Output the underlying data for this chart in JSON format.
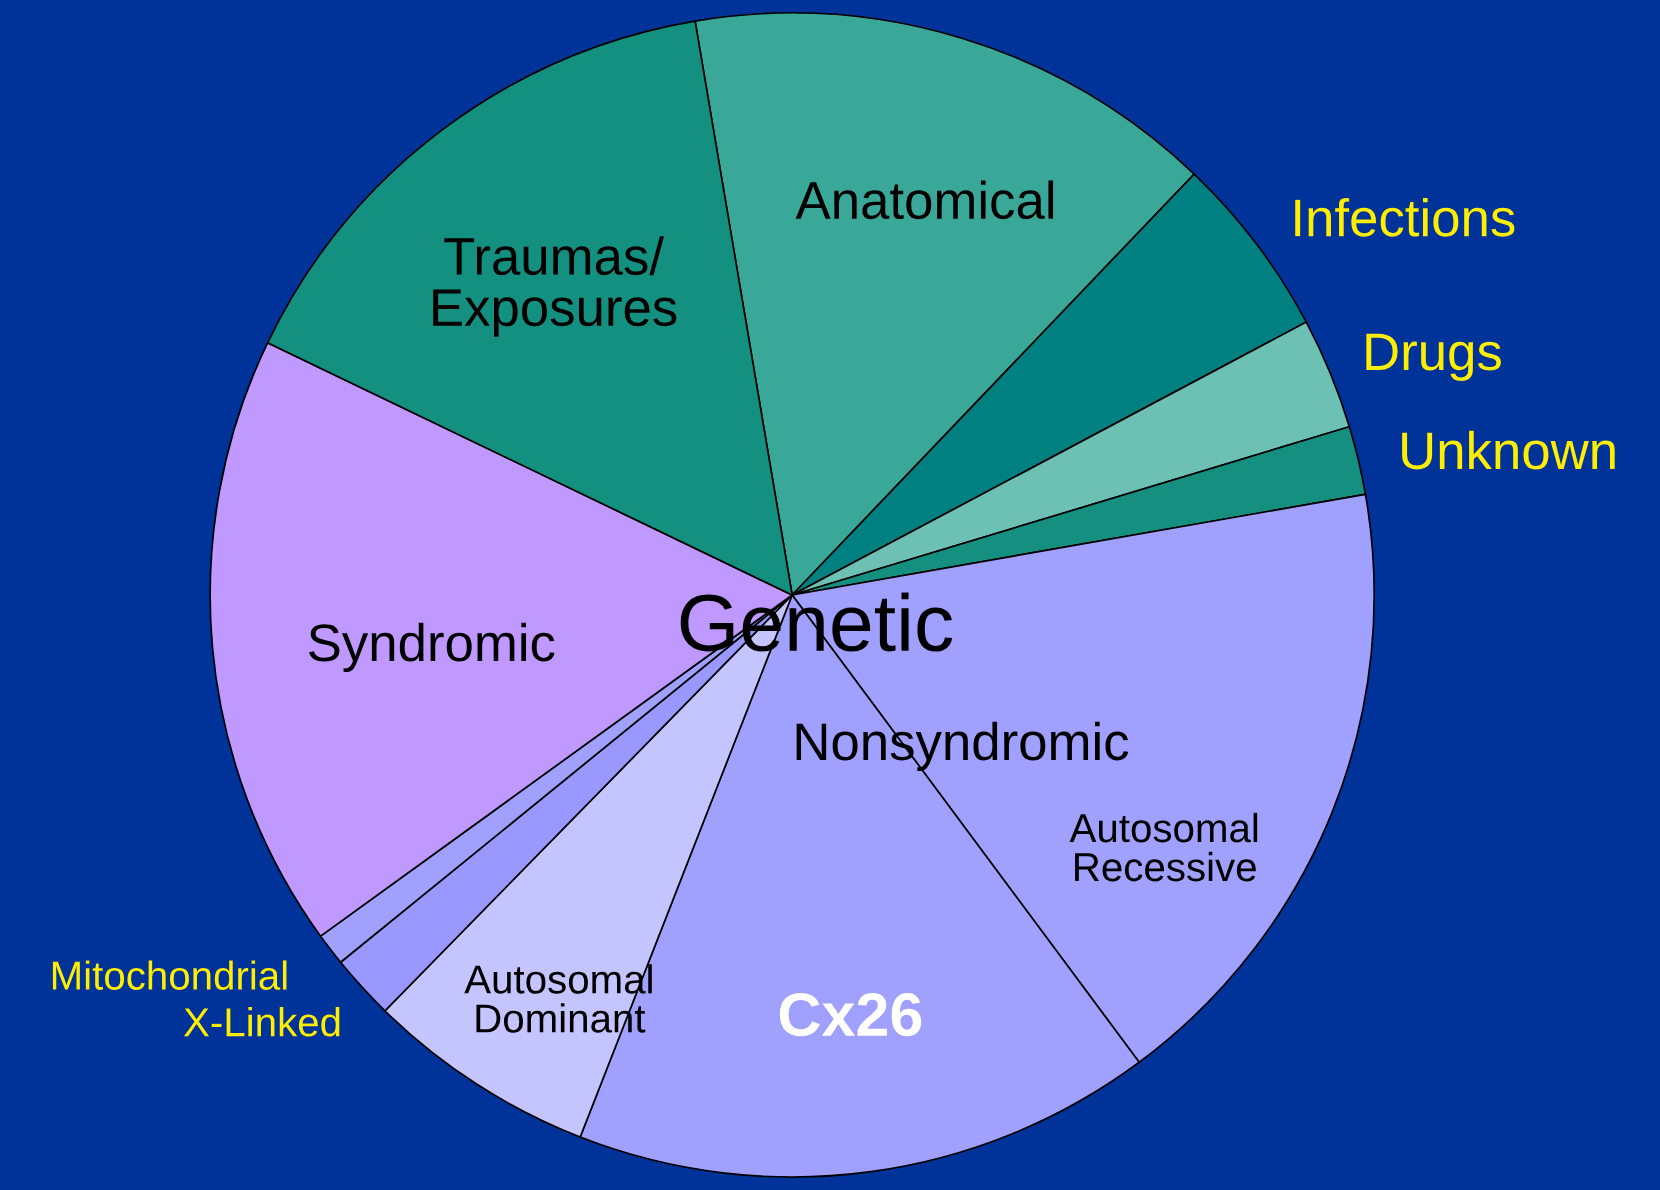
{
  "chart_data": {
    "type": "pie",
    "categories": [
      "Anatomical",
      "Infections",
      "Drugs",
      "Unknown",
      "Autosomal\nRecessive",
      "Cx26",
      "Autosomal\nDominant",
      "X-Linked",
      "Mitochondrial",
      "Syndromic",
      "Traumas/\nExposures"
    ],
    "values": [
      14.8,
      5.1,
      3.1,
      1.9,
      17.6,
      16.1,
      6.4,
      1.8,
      0.9,
      17.1,
      15.2
    ],
    "colors": [
      "#3aa898",
      "#008080",
      "#6cc0b4",
      "#159080",
      "#a0a0ff",
      "#a0a0ff",
      "#c4c4ff",
      "#9898ff",
      "#a0a0ff",
      "#bf99ff",
      "#139080"
    ],
    "annotations": [
      "Genetic",
      "Nonsyndromic"
    ]
  }
}
